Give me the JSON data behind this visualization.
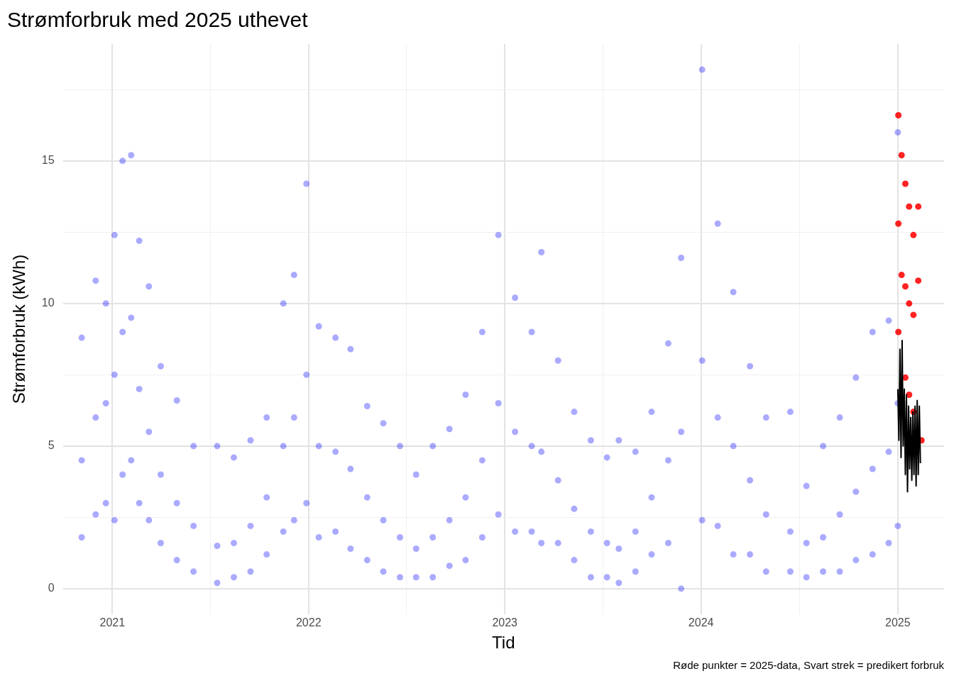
{
  "chart_data": {
    "type": "scatter",
    "title": "Strømforbruk med 2025 uthevet",
    "xlabel": "Tid",
    "ylabel": "Strømforbruk (kWh)",
    "annotations": [
      "Røde punkter = 2025-data, Svart strek = predikert forbruk"
    ],
    "xlim": [
      "2020-10-01",
      "2025-03-28"
    ],
    "xticks": [
      {
        "value": "2021-01-01",
        "label": "2021"
      },
      {
        "value": "2021-07-02",
        "label": null
      },
      {
        "value": "2022-01-01",
        "label": "2022"
      },
      {
        "value": "2022-07-02",
        "label": null
      },
      {
        "value": "2023-01-01",
        "label": "2023"
      },
      {
        "value": "2023-07-02",
        "label": null
      },
      {
        "value": "2024-01-01",
        "label": "2024"
      },
      {
        "value": "2024-07-02",
        "label": null
      },
      {
        "value": "2025-01-01",
        "label": "2025"
      }
    ],
    "ylim": [
      -0.9,
      19.1
    ],
    "yticks": [
      0,
      {
        "value": 2.5,
        "label": null
      },
      5,
      {
        "value": 7.5,
        "label": null
      },
      10,
      {
        "value": 12.5,
        "label": null
      },
      15,
      {
        "value": 17.5,
        "label": null
      }
    ],
    "grid": true,
    "legend": false,
    "marker": "circle",
    "series": [
      {
        "color": "#0000ff",
        "x": [
          "2020-11-05",
          "2020-11-05",
          "2020-11-05",
          "2020-12-01",
          "2020-12-01",
          "2020-12-01",
          "2020-12-20",
          "2020-12-20",
          "2020-12-20",
          "2021-01-05",
          "2021-01-05",
          "2021-01-05",
          "2021-01-20",
          "2021-01-20",
          "2021-01-20",
          "2021-02-05",
          "2021-02-05",
          "2021-02-05",
          "2021-02-20",
          "2021-02-20",
          "2021-02-20",
          "2021-03-10",
          "2021-03-10",
          "2021-03-10",
          "2021-04-01",
          "2021-04-01",
          "2021-04-01",
          "2021-05-01",
          "2021-05-01",
          "2021-05-01",
          "2021-06-01",
          "2021-06-01",
          "2021-06-01",
          "2021-07-15",
          "2021-07-15",
          "2021-07-15",
          "2021-08-15",
          "2021-08-15",
          "2021-08-15",
          "2021-09-15",
          "2021-09-15",
          "2021-09-15",
          "2021-10-15",
          "2021-10-15",
          "2021-10-15",
          "2021-11-15",
          "2021-11-15",
          "2021-11-15",
          "2021-12-05",
          "2021-12-05",
          "2021-12-05",
          "2021-12-28",
          "2021-12-28",
          "2021-12-28",
          "2022-01-20",
          "2022-01-20",
          "2022-01-20",
          "2022-02-20",
          "2022-02-20",
          "2022-02-20",
          "2022-03-20",
          "2022-03-20",
          "2022-03-20",
          "2022-04-20",
          "2022-04-20",
          "2022-04-20",
          "2022-05-20",
          "2022-05-20",
          "2022-05-20",
          "2022-06-20",
          "2022-06-20",
          "2022-06-20",
          "2022-07-20",
          "2022-07-20",
          "2022-07-20",
          "2022-08-20",
          "2022-08-20",
          "2022-08-20",
          "2022-09-20",
          "2022-09-20",
          "2022-09-20",
          "2022-10-20",
          "2022-10-20",
          "2022-10-20",
          "2022-11-20",
          "2022-11-20",
          "2022-11-20",
          "2022-12-20",
          "2022-12-20",
          "2022-12-20",
          "2023-01-20",
          "2023-01-20",
          "2023-01-20",
          "2023-02-20",
          "2023-02-20",
          "2023-02-20",
          "2023-03-10",
          "2023-03-10",
          "2023-03-10",
          "2023-04-10",
          "2023-04-10",
          "2023-04-10",
          "2023-05-10",
          "2023-05-10",
          "2023-05-10",
          "2023-06-10",
          "2023-06-10",
          "2023-06-10",
          "2023-07-10",
          "2023-07-10",
          "2023-07-10",
          "2023-08-01",
          "2023-08-01",
          "2023-08-01",
          "2023-09-01",
          "2023-09-01",
          "2023-09-01",
          "2023-10-01",
          "2023-10-01",
          "2023-10-01",
          "2023-11-01",
          "2023-11-01",
          "2023-11-01",
          "2023-11-25",
          "2023-11-25",
          "2023-11-25",
          "2024-01-03",
          "2024-01-03",
          "2024-01-03",
          "2024-02-01",
          "2024-02-01",
          "2024-02-01",
          "2024-03-01",
          "2024-03-01",
          "2024-03-01",
          "2024-04-01",
          "2024-04-01",
          "2024-04-01",
          "2024-05-01",
          "2024-05-01",
          "2024-05-01",
          "2024-06-15",
          "2024-06-15",
          "2024-06-15",
          "2024-07-15",
          "2024-07-15",
          "2024-07-15",
          "2024-08-15",
          "2024-08-15",
          "2024-08-15",
          "2024-09-15",
          "2024-09-15",
          "2024-09-15",
          "2024-10-15",
          "2024-10-15",
          "2024-10-15",
          "2024-11-15",
          "2024-11-15",
          "2024-11-15",
          "2024-12-15",
          "2024-12-15",
          "2024-12-15",
          "2025-01-01",
          "2025-01-01",
          "2025-01-01"
        ],
        "values": [
          8.8,
          4.5,
          1.8,
          10.8,
          6.0,
          2.6,
          10.0,
          6.5,
          3.0,
          12.4,
          7.5,
          2.4,
          15.0,
          9.0,
          4.0,
          15.2,
          9.5,
          4.5,
          12.2,
          7.0,
          3.0,
          10.6,
          5.5,
          2.4,
          7.8,
          4.0,
          1.6,
          6.6,
          3.0,
          1.0,
          5.0,
          2.2,
          0.6,
          5.0,
          1.5,
          0.2,
          4.6,
          1.6,
          0.4,
          5.2,
          2.2,
          0.6,
          6.0,
          3.2,
          1.2,
          10.0,
          5.0,
          2.0,
          11.0,
          6.0,
          2.4,
          14.2,
          7.5,
          3.0,
          9.2,
          5.0,
          1.8,
          8.8,
          4.8,
          2.0,
          8.4,
          4.2,
          1.4,
          6.4,
          3.2,
          1.0,
          5.8,
          2.4,
          0.6,
          5.0,
          1.8,
          0.4,
          4.0,
          1.4,
          0.4,
          5.0,
          1.8,
          0.4,
          5.6,
          2.4,
          0.8,
          6.8,
          3.2,
          1.0,
          9.0,
          4.5,
          1.8,
          12.4,
          6.5,
          2.6,
          10.2,
          5.5,
          2.0,
          9.0,
          5.0,
          2.0,
          11.8,
          4.8,
          1.6,
          8.0,
          3.8,
          1.6,
          6.2,
          2.8,
          1.0,
          5.2,
          2.0,
          0.4,
          4.6,
          1.6,
          0.4,
          5.2,
          1.4,
          0.2,
          4.8,
          2.0,
          0.6,
          6.2,
          3.2,
          1.2,
          8.6,
          4.5,
          1.6,
          11.6,
          5.5,
          0.0,
          18.2,
          8.0,
          2.4,
          12.8,
          6.0,
          2.2,
          10.4,
          5.0,
          1.2,
          7.8,
          3.8,
          1.2,
          6.0,
          2.6,
          0.6,
          6.2,
          2.0,
          0.6,
          3.6,
          1.6,
          0.4,
          5.0,
          1.8,
          0.6,
          6.0,
          2.6,
          0.6,
          7.4,
          3.4,
          1.0,
          9.0,
          4.2,
          1.2,
          9.4,
          4.8,
          1.6,
          16.0,
          6.5,
          2.2
        ]
      },
      {
        "color": "#ff0000",
        "x": [
          "2025-01-02",
          "2025-01-02",
          "2025-01-02",
          "2025-01-08",
          "2025-01-08",
          "2025-01-15",
          "2025-01-15",
          "2025-01-15",
          "2025-01-22",
          "2025-01-22",
          "2025-01-22",
          "2025-01-30",
          "2025-01-30",
          "2025-01-30",
          "2025-02-08",
          "2025-02-08",
          "2025-02-14"
        ],
        "values": [
          16.6,
          12.8,
          9.0,
          15.2,
          11.0,
          14.2,
          10.6,
          7.4,
          13.4,
          10.0,
          6.8,
          12.4,
          9.6,
          6.2,
          13.4,
          10.8,
          5.2
        ]
      },
      {
        "type": "line",
        "color": "#000000",
        "marker": "none",
        "line_style": "solid",
        "x": [
          "2025-01-01",
          "2025-01-03",
          "2025-01-05",
          "2025-01-07",
          "2025-01-09",
          "2025-01-11",
          "2025-01-13",
          "2025-01-15",
          "2025-01-17",
          "2025-01-19",
          "2025-01-21",
          "2025-01-23",
          "2025-01-25",
          "2025-01-27",
          "2025-01-29",
          "2025-01-31",
          "2025-02-02",
          "2025-02-04",
          "2025-02-06",
          "2025-02-08",
          "2025-02-10",
          "2025-02-12"
        ],
        "values": [
          7.0,
          5.2,
          8.4,
          4.6,
          8.7,
          5.0,
          7.0,
          4.0,
          6.8,
          3.4,
          6.4,
          4.2,
          6.0,
          3.8,
          6.2,
          4.0,
          6.4,
          3.6,
          6.6,
          4.0,
          6.4,
          4.4
        ]
      }
    ]
  }
}
